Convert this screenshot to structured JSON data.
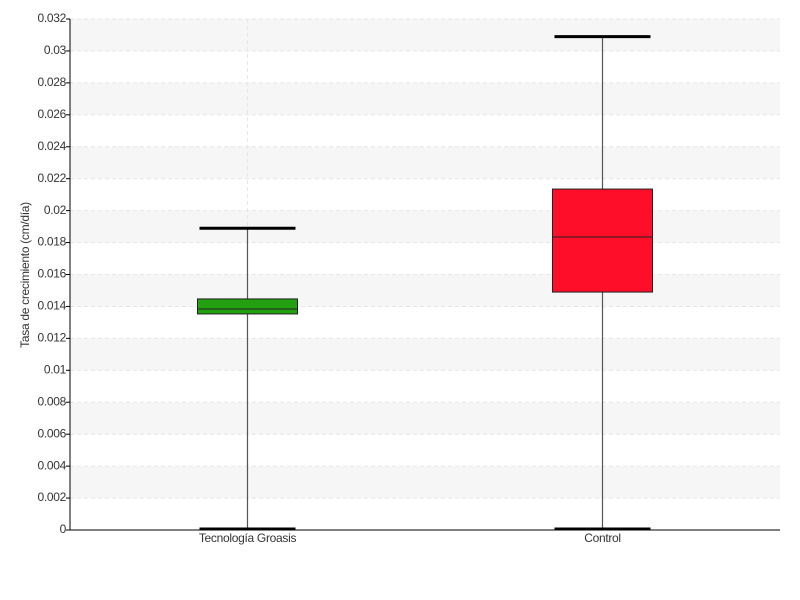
{
  "chart_data": {
    "type": "box",
    "y_label": "Tasa de crecimiento (cm/día)",
    "categories": [
      "Tecnología Groasis",
      "Control"
    ],
    "boxes": [
      {
        "min": 0,
        "q1": 0.01353,
        "median": 0.01384,
        "q3": 0.01447,
        "max": 0.0189,
        "color": "#22a00f"
      },
      {
        "min": 0,
        "q1": 0.0149,
        "median": 0.01835,
        "q3": 0.02135,
        "max": 0.0309,
        "color": "#ff0e2a"
      }
    ],
    "ylim": [
      0,
      0.032
    ],
    "yticks": [
      0,
      0.002,
      0.004,
      0.006,
      0.008,
      0.01,
      0.012,
      0.014,
      0.016,
      0.018,
      0.02,
      0.022,
      0.024,
      0.026,
      0.028,
      0.03,
      0.032
    ],
    "grid": true
  }
}
